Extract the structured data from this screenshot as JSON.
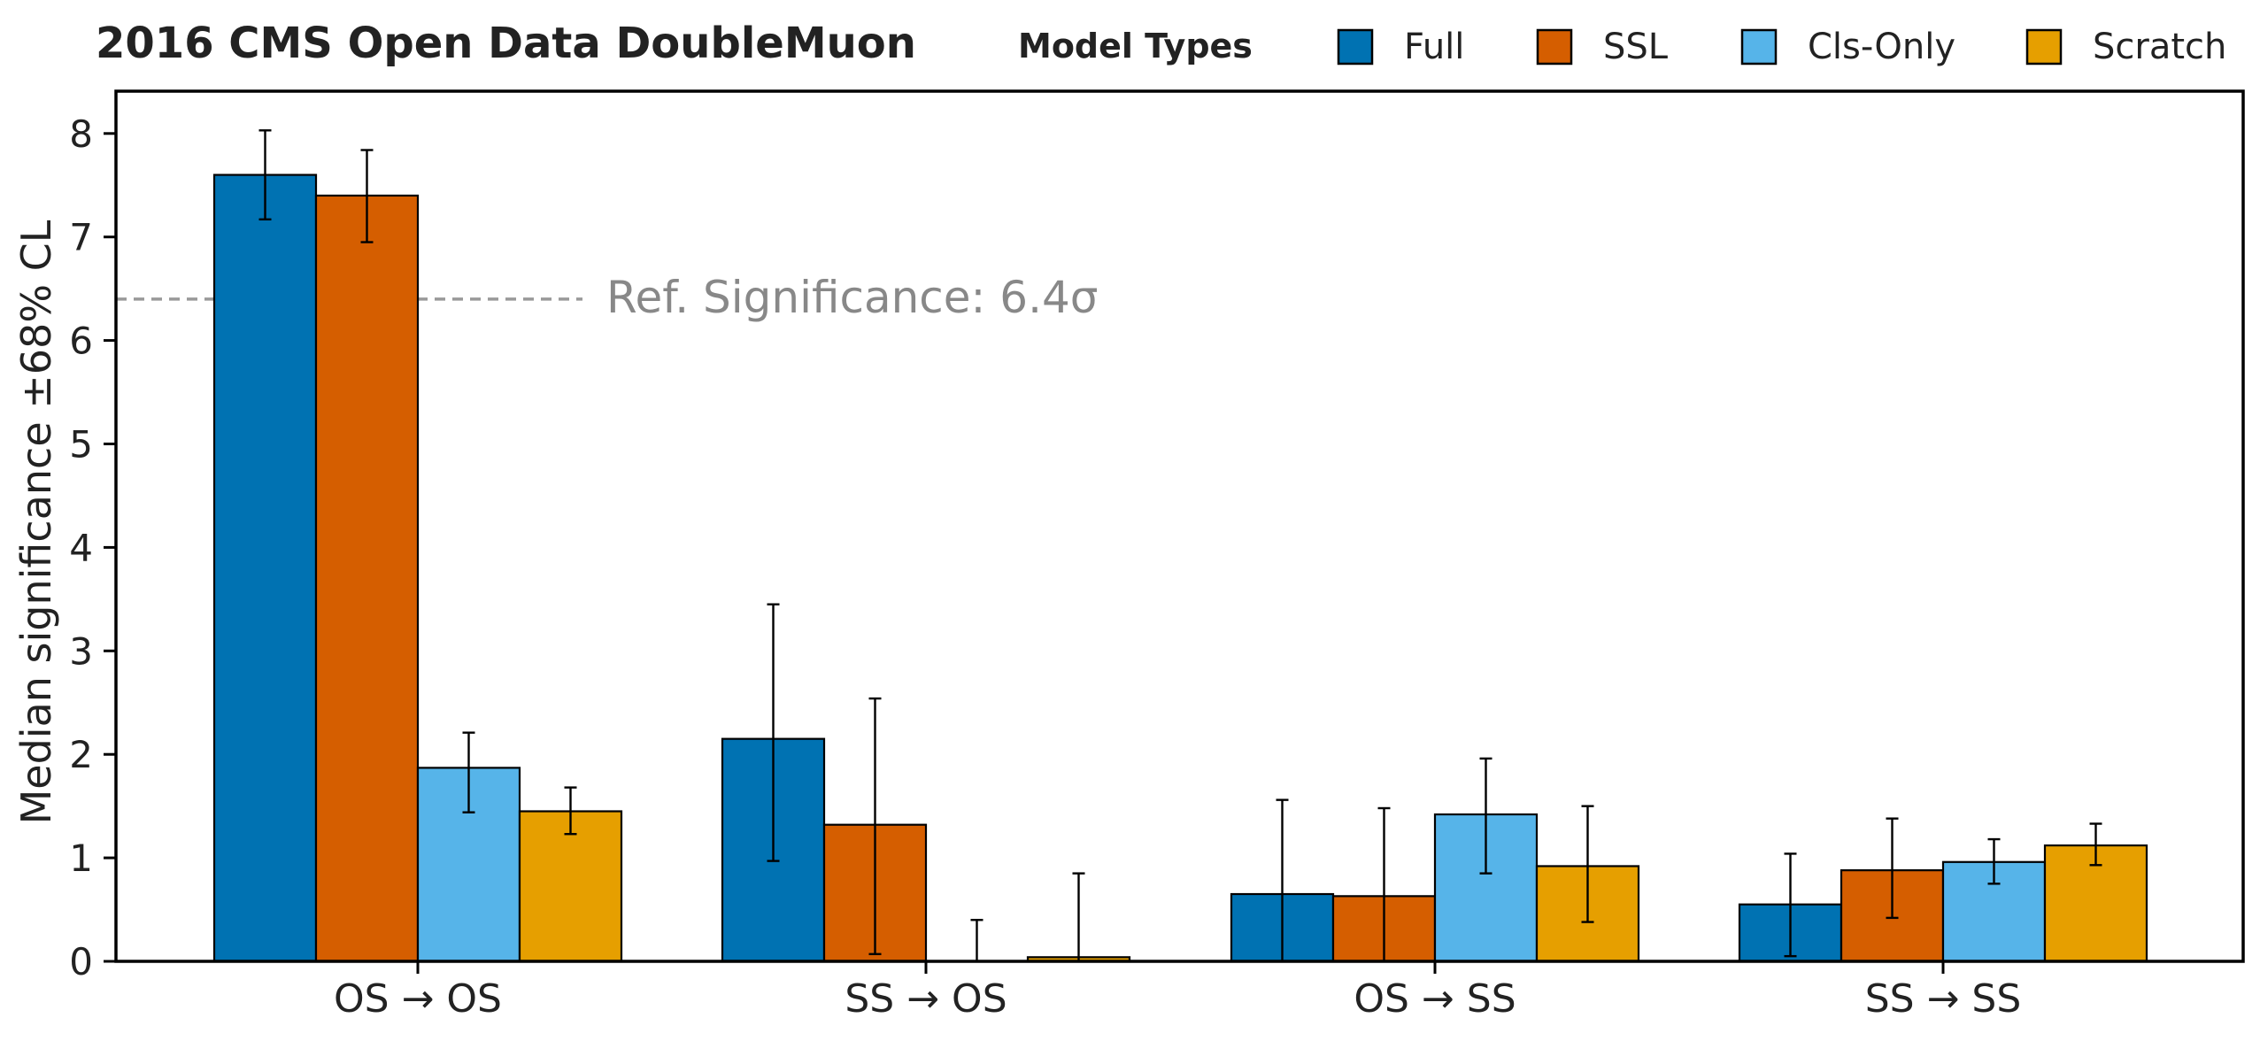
{
  "chart_data": {
    "type": "bar",
    "title": "2016 CMS Open Data DoubleMuon",
    "xlabel": "",
    "ylabel": "Median significance ±68% CL",
    "ylim": [
      0,
      8.4
    ],
    "yticks": [
      0,
      1,
      2,
      3,
      4,
      5,
      6,
      7,
      8
    ],
    "categories": [
      "OS → OS",
      "SS → OS",
      "OS → SS",
      "SS → SS"
    ],
    "legend": {
      "title": "Model Types",
      "placement": "top",
      "entries": [
        "Full",
        "SSL",
        "Cls-Only",
        "Scratch"
      ]
    },
    "series": [
      {
        "name": "Full",
        "color": "#0072B2",
        "values": [
          7.6,
          2.15,
          0.65,
          0.55
        ],
        "err_low": [
          7.17,
          0.97,
          0.0,
          0.05
        ],
        "err_high": [
          8.03,
          3.45,
          1.56,
          1.04
        ]
      },
      {
        "name": "SSL",
        "color": "#D55E00",
        "values": [
          7.4,
          1.32,
          0.63,
          0.88
        ],
        "err_low": [
          6.95,
          0.07,
          0.0,
          0.42
        ],
        "err_high": [
          7.84,
          2.54,
          1.48,
          1.38
        ]
      },
      {
        "name": "Cls-Only",
        "color": "#56B4E9",
        "values": [
          1.87,
          0.0,
          1.42,
          0.96
        ],
        "err_low": [
          1.44,
          0.0,
          0.85,
          0.75
        ],
        "err_high": [
          2.21,
          0.4,
          1.96,
          1.18
        ]
      },
      {
        "name": "Scratch",
        "color": "#E69F00",
        "values": [
          1.45,
          0.04,
          0.92,
          1.12
        ],
        "err_low": [
          1.23,
          0.0,
          0.38,
          0.93
        ],
        "err_high": [
          1.68,
          0.85,
          1.5,
          1.33
        ]
      }
    ],
    "reference_line": {
      "value": 6.4,
      "label": "Ref. Significance: 6.4σ",
      "color": "#999999"
    },
    "grid": false
  }
}
